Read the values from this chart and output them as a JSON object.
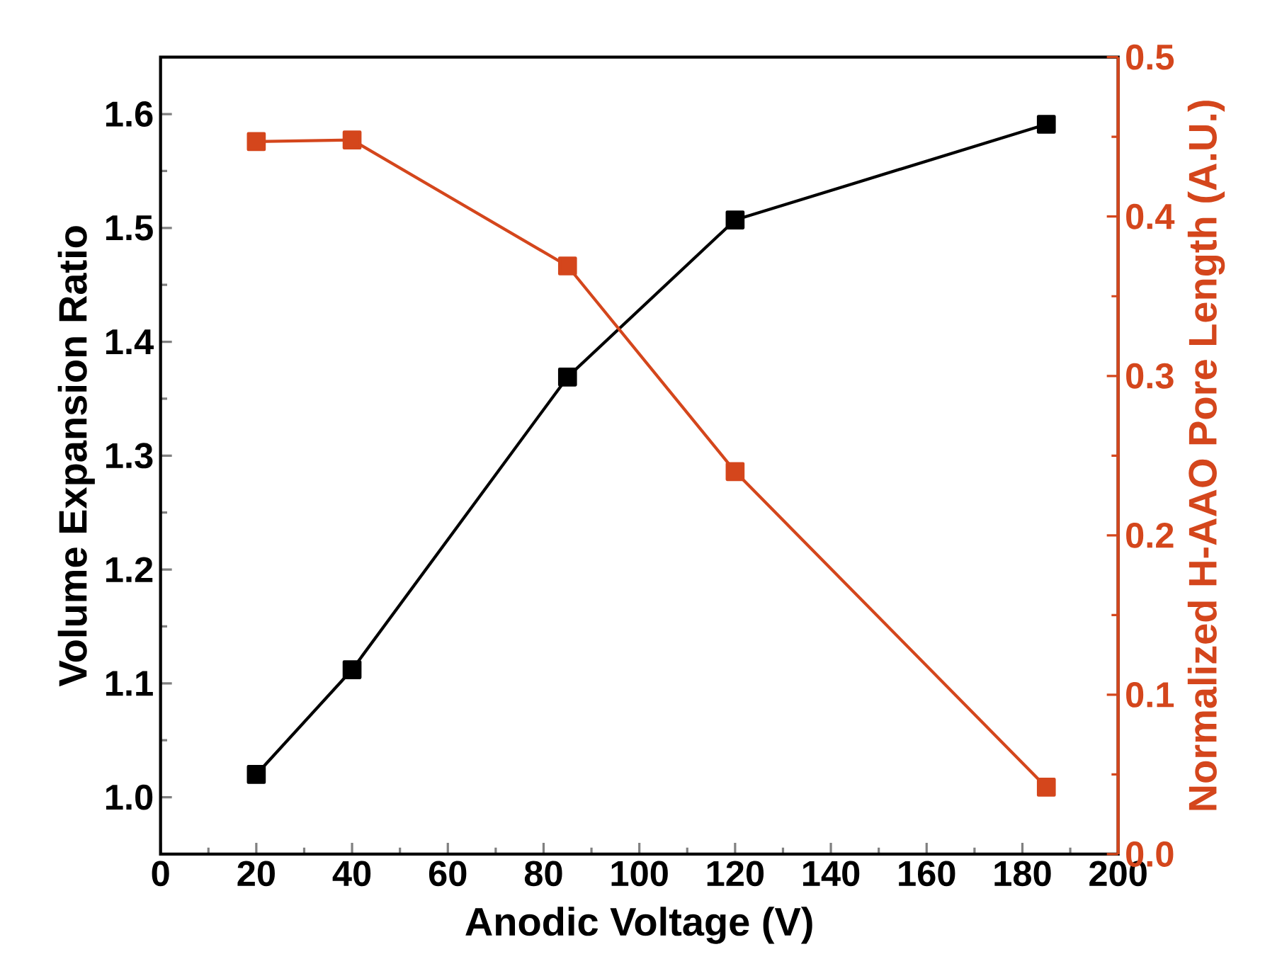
{
  "chart_data": {
    "type": "line",
    "xlabel": "Anodic Voltage (V)",
    "ylabel": "Volume Expansion Ratio",
    "y2label": "Normalized H-AAO Pore Length (A.U.)",
    "x": [
      20,
      40,
      85,
      120,
      185
    ],
    "xlim": [
      0,
      200
    ],
    "xticks": [
      0,
      20,
      40,
      60,
      80,
      100,
      120,
      140,
      160,
      180,
      200
    ],
    "ylim": [
      0.95,
      1.65
    ],
    "yticks": [
      {
        "value": 1.0,
        "label": "1.0"
      },
      1.1,
      1.2,
      1.3,
      1.4,
      1.5,
      1.6
    ],
    "y2lim": [
      0,
      0.5
    ],
    "y2ticks": [
      {
        "value": 0,
        "label": "0.0"
      },
      0.1,
      0.2,
      0.3,
      0.4,
      0.5
    ],
    "marker": "square",
    "series": [
      {
        "color": "#000000",
        "values": [
          1.02,
          1.112,
          1.369,
          1.507,
          1.591
        ]
      },
      {
        "color": "#d4461c",
        "axis": "y2",
        "values": [
          0.447,
          0.448,
          0.369,
          0.24,
          0.042
        ]
      }
    ]
  }
}
